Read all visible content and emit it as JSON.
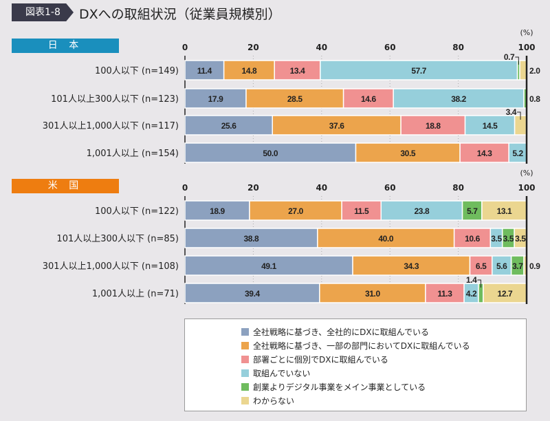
{
  "figure_tag": "図表1-8",
  "title": "DXへの取組状況（従業員規模別）",
  "chart_data": [
    {
      "type": "bar",
      "orientation": "horizontal",
      "stacked": true,
      "region": "日 本",
      "unit": "(%)",
      "xlim": [
        0,
        100
      ],
      "xticks": [
        0,
        20,
        40,
        60,
        80,
        100
      ],
      "categories": [
        "100人以下 (n=149)",
        "101人以上300人以下 (n=123)",
        "301人以上1,000人以下 (n=117)",
        "1,001人以上 (n=154)"
      ],
      "rows": [
        [
          11.4,
          14.8,
          13.4,
          57.7,
          0.7,
          2.0
        ],
        [
          17.9,
          28.5,
          14.6,
          38.2,
          0.8,
          0
        ],
        [
          25.6,
          37.6,
          18.8,
          14.5,
          0,
          3.4
        ],
        [
          50.0,
          30.5,
          14.3,
          5.2,
          0,
          0
        ]
      ]
    },
    {
      "type": "bar",
      "orientation": "horizontal",
      "stacked": true,
      "region": "米 国",
      "unit": "(%)",
      "xlim": [
        0,
        100
      ],
      "xticks": [
        0,
        20,
        40,
        60,
        80,
        100
      ],
      "categories": [
        "100人以下 (n=122)",
        "101人以上300人以下 (n=85)",
        "301人以上1,000人以下 (n=108)",
        "1,001人以上 (n=71)"
      ],
      "rows": [
        [
          18.9,
          27.0,
          11.5,
          23.8,
          5.7,
          13.1
        ],
        [
          38.8,
          40.0,
          10.6,
          3.5,
          3.5,
          3.5
        ],
        [
          49.1,
          34.3,
          6.5,
          5.6,
          3.7,
          0.9
        ],
        [
          39.4,
          31.0,
          11.3,
          4.2,
          1.4,
          12.7
        ]
      ]
    }
  ],
  "legend": [
    {
      "label": "全社戦略に基づき、全社的にDXに取組んでいる",
      "color": "#8ca1bf"
    },
    {
      "label": "全社戦略に基づき、一部の部門においてDXに取組んでいる",
      "color": "#eca44c"
    },
    {
      "label": "部署ごとに個別でDXに取組んでいる",
      "color": "#f09191"
    },
    {
      "label": "取組んでいない",
      "color": "#96cfdb"
    },
    {
      "label": "創業よりデジタル事業をメイン事業としている",
      "color": "#6fbc5e"
    },
    {
      "label": "わからない",
      "color": "#ebd690"
    }
  ],
  "region_colors": [
    "#1a8fbd",
    "#ee7d10"
  ]
}
